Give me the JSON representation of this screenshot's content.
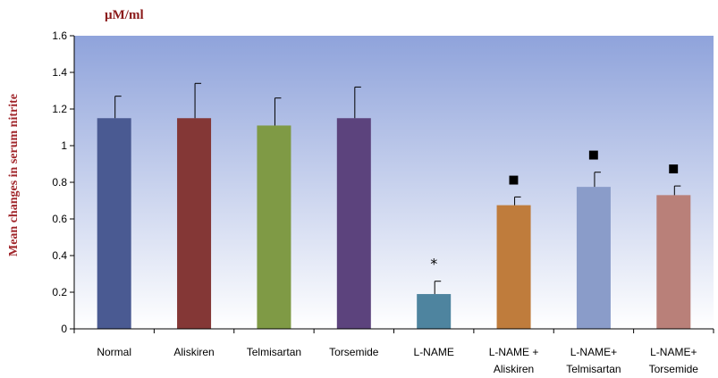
{
  "chart_data": {
    "type": "bar",
    "title": "",
    "unit_label": "µM/ml",
    "xlabel": "",
    "ylabel": "Mean changes in serum nitrite",
    "ylim": [
      0,
      1.6
    ],
    "yticks": [
      "0",
      "0.2",
      "0.4",
      "0.6",
      "0.8",
      "1",
      "1.2",
      "1.4",
      "1.6"
    ],
    "grid": false,
    "categories": [
      [
        "Normal"
      ],
      [
        "Aliskiren"
      ],
      [
        "Telmisartan"
      ],
      [
        "Torsemide"
      ],
      [
        "L-NAME"
      ],
      [
        "L-NAME +",
        "Aliskiren"
      ],
      [
        "L-NAME+",
        "Telmisartan"
      ],
      [
        "L-NAME+",
        "Torsemide"
      ]
    ],
    "values": [
      1.15,
      1.15,
      1.11,
      1.15,
      0.19,
      0.675,
      0.775,
      0.73
    ],
    "errors": [
      0.12,
      0.19,
      0.15,
      0.17,
      0.07,
      0.045,
      0.08,
      0.05
    ],
    "markers": [
      "",
      "",
      "",
      "",
      "*",
      "■",
      "■",
      "■"
    ],
    "colors": [
      "#4A5A92",
      "#843736",
      "#7F9A45",
      "#5C437D",
      "#4E849F",
      "#BF7C3C",
      "#8A9CC9",
      "#B98079"
    ]
  }
}
